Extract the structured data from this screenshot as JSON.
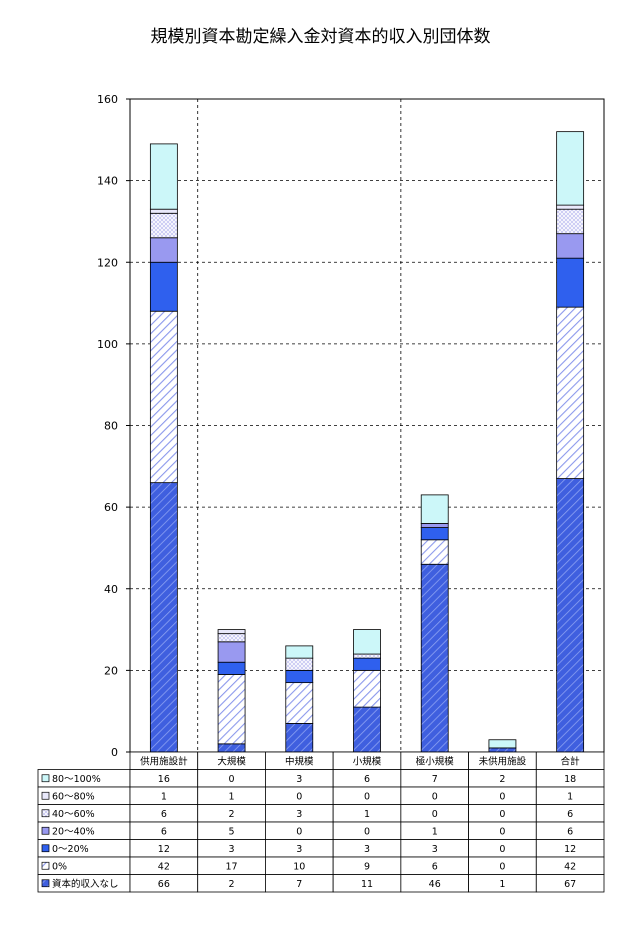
{
  "chart_data": {
    "type": "bar",
    "stacked": true,
    "title": "規模別資本勘定繰入金対資本的収入別団体数",
    "xlabel": "",
    "ylabel": "",
    "ylim": [
      0,
      160
    ],
    "yticks": [
      0,
      20,
      40,
      60,
      80,
      100,
      120,
      140,
      160
    ],
    "grid": true,
    "legend_placement": "data table, left",
    "categories": [
      "供用施設計",
      "大規模",
      "中規模",
      "小規模",
      "極小規模",
      "未供用施設",
      "合計"
    ],
    "series": [
      {
        "name": "資本的収入なし",
        "values": [
          66,
          2,
          7,
          11,
          46,
          1,
          67
        ],
        "color": "#3f5fdf",
        "pattern": "hatch-dense"
      },
      {
        "name": "0%",
        "values": [
          42,
          17,
          10,
          9,
          6,
          0,
          42
        ],
        "color": "#9aa6ee",
        "pattern": "hatch-light"
      },
      {
        "name": "0～20%",
        "values": [
          12,
          3,
          3,
          3,
          3,
          0,
          12
        ],
        "color": "#2f60ee",
        "pattern": "solid"
      },
      {
        "name": "20～40%",
        "values": [
          6,
          5,
          0,
          0,
          1,
          0,
          6
        ],
        "color": "#9999f0",
        "pattern": "solid"
      },
      {
        "name": "40～60%",
        "values": [
          6,
          2,
          3,
          1,
          0,
          0,
          6
        ],
        "color": "#c8c8f4",
        "pattern": "hatch-cross"
      },
      {
        "name": "60～80%",
        "values": [
          1,
          1,
          0,
          0,
          0,
          0,
          1
        ],
        "color": "#e9e9fb",
        "pattern": "solid"
      },
      {
        "name": "80～100%",
        "values": [
          16,
          0,
          3,
          6,
          7,
          2,
          18
        ],
        "color": "#ccf7f9",
        "pattern": "solid"
      }
    ]
  }
}
